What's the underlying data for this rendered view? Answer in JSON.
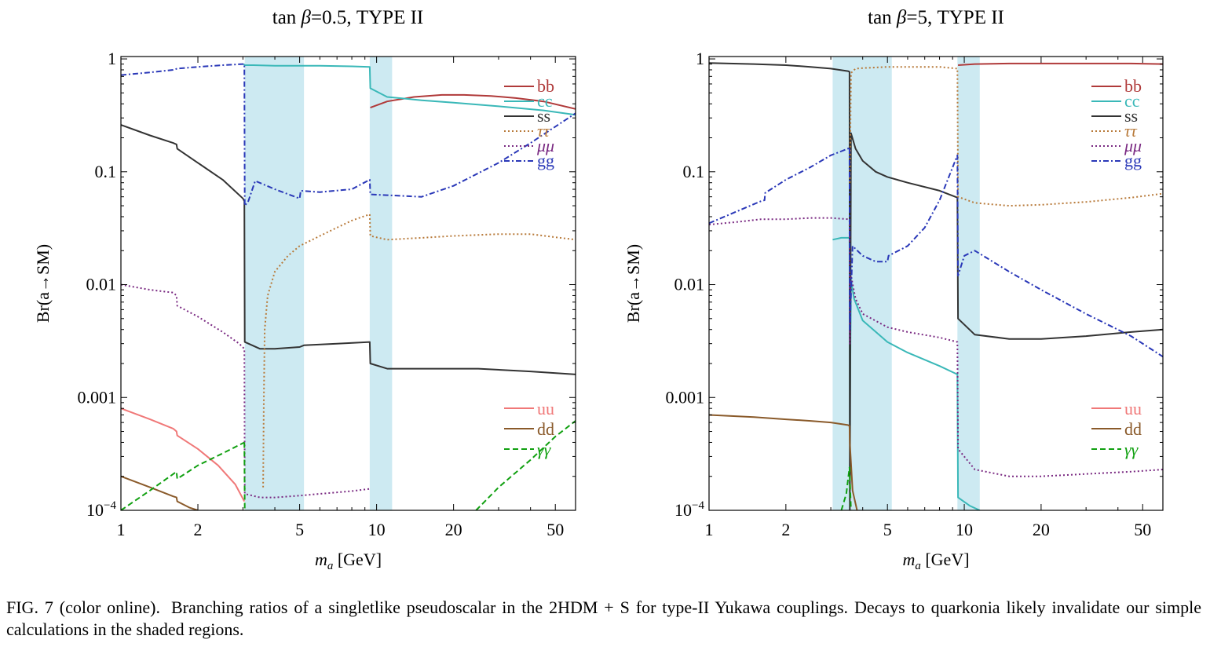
{
  "figure": {
    "caption_label": "FIG. 7 (color online).",
    "caption_text": "Branching ratios of a singletlike pseudoscalar in the 2HDM + S for type-II Yukawa couplings. Decays to quarkonia likely invalidate our simple calculations in the shaded regions."
  },
  "colors": {
    "bb": "#b03a3a",
    "cc": "#3ab8b8",
    "ss": "#333333",
    "tautau": "#b87a3a",
    "mumu": "#7a2a82",
    "gg": "#2a38b8",
    "uu": "#f07878",
    "dd": "#8a5a2a",
    "gammagamma": "#10a010",
    "shade": "#cdeaf2"
  },
  "chart_data": [
    {
      "type": "line",
      "title": "tan β=0.5, TYPE II",
      "xlabel": "m_a [GeV]",
      "ylabel": "Br(a→SM)",
      "xscale": "log",
      "yscale": "log",
      "xlim": [
        1,
        60
      ],
      "ylim": [
        0.0001,
        1.05
      ],
      "xticks": [
        1,
        2,
        5,
        10,
        20,
        50
      ],
      "xtick_labels": [
        "1",
        "2",
        "5",
        "10",
        "20",
        "50"
      ],
      "yticks": [
        0.0001,
        0.001,
        0.01,
        0.1,
        1
      ],
      "ytick_labels": [
        "10−4",
        "0.001",
        "0.01",
        "0.1",
        "1"
      ],
      "shaded_regions": [
        [
          3.05,
          5.2
        ],
        [
          9.4,
          11.5
        ]
      ],
      "legends": [
        {
          "position": "top-right",
          "entries": [
            "bb",
            "cc",
            "ss",
            "ττ",
            "μμ",
            "gg"
          ]
        },
        {
          "position": "bottom-right",
          "entries": [
            "uu",
            "dd",
            "γγ"
          ]
        }
      ],
      "series": [
        {
          "name": "bb",
          "key": "bb",
          "dash": "solid",
          "x": [
            9.45,
            11,
            14,
            18,
            22,
            28,
            35,
            45,
            60
          ],
          "y": [
            0.37,
            0.42,
            0.46,
            0.48,
            0.48,
            0.47,
            0.45,
            0.42,
            0.36
          ]
        },
        {
          "name": "cc",
          "key": "cc",
          "dash": "solid",
          "x": [
            3.02,
            3.05,
            3.3,
            4,
            5,
            6,
            8,
            9.4,
            9.45,
            11,
            15,
            20,
            30,
            45,
            60
          ],
          "y": [
            0.9,
            0.88,
            0.88,
            0.87,
            0.87,
            0.87,
            0.86,
            0.85,
            0.55,
            0.46,
            0.43,
            0.41,
            0.38,
            0.35,
            0.32
          ]
        },
        {
          "name": "ss",
          "key": "ss",
          "dash": "solid",
          "x": [
            1,
            1.3,
            1.6,
            1.65,
            1.66,
            2,
            2.5,
            3.0,
            3.04,
            3.05,
            3.5,
            4,
            5,
            5.2,
            7,
            9.4,
            9.45,
            11,
            15,
            25,
            40,
            60
          ],
          "y": [
            0.26,
            0.21,
            0.18,
            0.175,
            0.16,
            0.12,
            0.085,
            0.058,
            0.055,
            0.0031,
            0.0027,
            0.0027,
            0.0028,
            0.0029,
            0.003,
            0.0031,
            0.002,
            0.0018,
            0.0018,
            0.0018,
            0.0017,
            0.0016
          ]
        },
        {
          "name": "ττ",
          "key": "tautau",
          "dash": "dotted",
          "x": [
            3.6,
            3.62,
            3.65,
            3.75,
            4,
            4.5,
            5,
            6,
            7,
            8,
            9.4,
            9.45,
            11,
            15,
            20,
            30,
            40,
            60
          ],
          "y": [
            0.00016,
            0.0008,
            0.004,
            0.008,
            0.013,
            0.018,
            0.022,
            0.027,
            0.032,
            0.037,
            0.042,
            0.027,
            0.025,
            0.026,
            0.027,
            0.028,
            0.028,
            0.025
          ]
        },
        {
          "name": "μμ",
          "key": "mumu",
          "dash": "dotted",
          "x": [
            1,
            1.3,
            1.6,
            1.65,
            1.66,
            2,
            2.5,
            2.9,
            3.04,
            3.05,
            3.5,
            4,
            5,
            6,
            8,
            9.4
          ],
          "y": [
            0.01,
            0.009,
            0.0085,
            0.008,
            0.0065,
            0.0052,
            0.0038,
            0.003,
            0.0027,
            0.00014,
            0.00013,
            0.00013,
            0.000135,
            0.00014,
            0.000148,
            0.000155
          ]
        },
        {
          "name": "gg",
          "key": "gg",
          "dash": "dashdot",
          "x": [
            1,
            1.3,
            1.6,
            1.66,
            2,
            2.5,
            3.0,
            3.04,
            3.05,
            3.15,
            3.35,
            4,
            5,
            5.05,
            6,
            8,
            9.4,
            9.45,
            11,
            15,
            20,
            30,
            40,
            60
          ],
          "y": [
            0.72,
            0.76,
            0.8,
            0.82,
            0.85,
            0.88,
            0.9,
            0.9,
            0.05,
            0.055,
            0.083,
            0.07,
            0.058,
            0.068,
            0.066,
            0.07,
            0.085,
            0.063,
            0.062,
            0.06,
            0.075,
            0.12,
            0.18,
            0.33
          ]
        },
        {
          "name": "uu",
          "key": "uu",
          "dash": "solid",
          "x": [
            1,
            1.3,
            1.6,
            1.65,
            1.66,
            2,
            2.4,
            2.8,
            3.04
          ],
          "y": [
            0.0008,
            0.00064,
            0.00053,
            0.0005,
            0.00046,
            0.00035,
            0.00025,
            0.00017,
            0.00012
          ]
        },
        {
          "name": "dd",
          "key": "dd",
          "dash": "solid",
          "x": [
            1,
            1.3,
            1.6,
            1.65,
            1.66,
            1.85,
            2.0
          ],
          "y": [
            0.0002,
            0.00016,
            0.000133,
            0.00013,
            0.00012,
            0.000106,
            0.0001
          ]
        },
        {
          "name": "γγ",
          "key": "gammagamma",
          "dash": "dashed",
          "x": [
            1,
            1.3,
            1.65,
            1.66,
            2,
            2.5,
            3.04
          ],
          "y": [
            0.0001,
            0.00015,
            0.00022,
            0.00019,
            0.00025,
            0.00032,
            0.0004
          ]
        },
        {
          "name": "γγ",
          "key": "gammagamma",
          "dash": "dashed",
          "x": [
            3.04,
            3.05
          ],
          "y": [
            0.0004,
            0.0001
          ]
        },
        {
          "name": "γγ",
          "key": "gammagamma",
          "dash": "dashed",
          "x": [
            24.5,
            30,
            40,
            50,
            60
          ],
          "y": [
            0.0001,
            0.00016,
            0.00028,
            0.00045,
            0.00062
          ]
        }
      ]
    },
    {
      "type": "line",
      "title": "tan β=5, TYPE II",
      "xlabel": "m_a [GeV]",
      "ylabel": "Br(a→SM)",
      "xscale": "log",
      "yscale": "log",
      "xlim": [
        1,
        60
      ],
      "ylim": [
        0.0001,
        1.05
      ],
      "xticks": [
        1,
        2,
        5,
        10,
        20,
        50
      ],
      "xtick_labels": [
        "1",
        "2",
        "5",
        "10",
        "20",
        "50"
      ],
      "yticks": [
        0.0001,
        0.001,
        0.01,
        0.1,
        1
      ],
      "ytick_labels": [
        "10−4",
        "0.001",
        "0.01",
        "0.1",
        "1"
      ],
      "shaded_regions": [
        [
          3.05,
          5.2
        ],
        [
          9.4,
          11.5
        ]
      ],
      "legends": [
        {
          "position": "top-right",
          "entries": [
            "bb",
            "cc",
            "ss",
            "ττ",
            "μμ",
            "gg"
          ]
        },
        {
          "position": "bottom-right",
          "entries": [
            "uu",
            "dd",
            "γγ"
          ]
        }
      ],
      "series": [
        {
          "name": "bb",
          "key": "bb",
          "dash": "solid",
          "x": [
            9.45,
            11,
            15,
            20,
            30,
            45,
            60
          ],
          "y": [
            0.88,
            0.9,
            0.91,
            0.91,
            0.91,
            0.91,
            0.9
          ]
        },
        {
          "name": "cc",
          "key": "cc",
          "dash": "solid",
          "x": [
            3.05,
            3.3,
            3.55,
            3.56,
            3.6,
            3.7,
            4,
            5,
            6,
            8,
            9.4,
            9.45,
            10.5,
            11.5
          ],
          "y": [
            0.025,
            0.026,
            0.026,
            0.0006,
            0.011,
            0.0075,
            0.0048,
            0.0031,
            0.0025,
            0.0019,
            0.0016,
            0.00013,
            0.00011,
            0.0001
          ]
        },
        {
          "name": "ss",
          "key": "ss",
          "dash": "solid",
          "x": [
            1,
            1.5,
            2,
            2.5,
            3.0,
            3.5,
            3.55,
            3.56,
            3.6,
            3.75,
            4,
            4.5,
            5,
            6,
            8,
            9.4,
            9.45,
            11,
            15,
            20,
            30,
            45,
            60
          ],
          "y": [
            0.92,
            0.9,
            0.88,
            0.85,
            0.82,
            0.78,
            0.77,
            0.0001,
            0.22,
            0.16,
            0.125,
            0.1,
            0.09,
            0.08,
            0.068,
            0.059,
            0.005,
            0.0036,
            0.0033,
            0.0033,
            0.0035,
            0.0038,
            0.004
          ]
        },
        {
          "name": "ττ",
          "key": "tautau",
          "dash": "dotted",
          "x": [
            3.56,
            3.6,
            3.75,
            4,
            5,
            6,
            8,
            9.4,
            9.45,
            11,
            15,
            20,
            30,
            45,
            60
          ],
          "y": [
            0.08,
            0.75,
            0.82,
            0.83,
            0.85,
            0.85,
            0.85,
            0.82,
            0.06,
            0.053,
            0.05,
            0.051,
            0.054,
            0.059,
            0.064
          ]
        },
        {
          "name": "μμ",
          "key": "mumu",
          "dash": "dotted",
          "x": [
            1,
            1.3,
            1.6,
            1.7,
            2,
            2.5,
            3.0,
            3.5,
            3.55,
            3.56,
            3.6,
            3.75,
            4,
            5,
            6,
            8,
            9.4,
            9.45,
            11,
            15,
            20,
            30,
            45,
            60
          ],
          "y": [
            0.034,
            0.036,
            0.038,
            0.038,
            0.038,
            0.039,
            0.039,
            0.038,
            0.037,
            0.003,
            0.012,
            0.0075,
            0.0055,
            0.0042,
            0.0038,
            0.0034,
            0.0031,
            0.00035,
            0.00023,
            0.0002,
            0.0002,
            0.00021,
            0.00022,
            0.00023
          ]
        },
        {
          "name": "gg",
          "key": "gg",
          "dash": "dashdot",
          "x": [
            1,
            1.3,
            1.6,
            1.65,
            1.66,
            2,
            2.5,
            3.0,
            3.5,
            3.55,
            3.56,
            3.65,
            4,
            4.5,
            5,
            5.05,
            6,
            7,
            8,
            9.4,
            9.45,
            10,
            11,
            15,
            20,
            30,
            45,
            60
          ],
          "y": [
            0.035,
            0.045,
            0.055,
            0.056,
            0.065,
            0.085,
            0.11,
            0.14,
            0.16,
            0.165,
            0.004,
            0.022,
            0.018,
            0.016,
            0.016,
            0.018,
            0.022,
            0.032,
            0.056,
            0.14,
            0.012,
            0.018,
            0.02,
            0.013,
            0.009,
            0.0055,
            0.0035,
            0.0023
          ]
        },
        {
          "name": "dd",
          "key": "dd",
          "dash": "solid",
          "x": [
            1,
            1.5,
            2,
            2.5,
            3.0,
            3.5,
            3.55,
            3.56,
            3.65,
            3.8
          ],
          "y": [
            0.0007,
            0.00067,
            0.00064,
            0.00062,
            0.0006,
            0.00057,
            0.00056,
            0.0004,
            0.00015,
            0.0001
          ]
        },
        {
          "name": "γγ",
          "key": "gammagamma",
          "dash": "dashed",
          "x": [
            3.3,
            3.45,
            3.55,
            3.58,
            3.6
          ],
          "y": [
            0.0001,
            0.00014,
            0.00024,
            0.00014,
            0.0001
          ]
        }
      ]
    }
  ]
}
